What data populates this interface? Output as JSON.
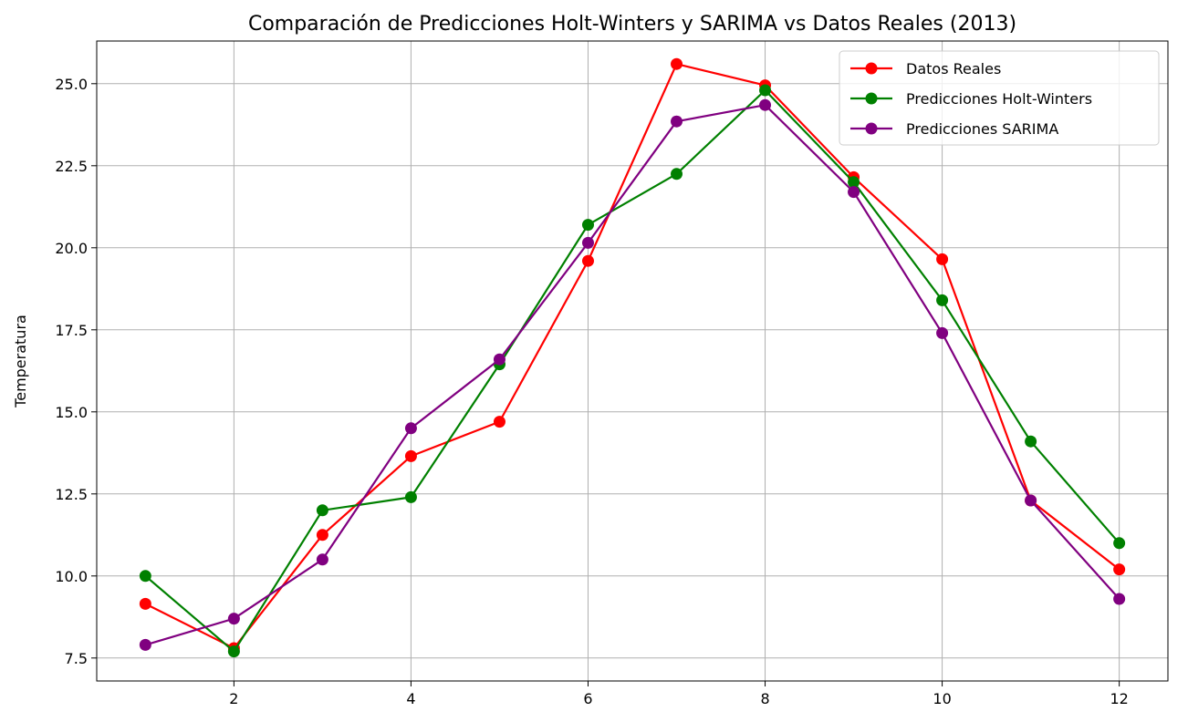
{
  "chart_data": {
    "type": "line",
    "title": "Comparación de Predicciones Holt-Winters y SARIMA vs Datos Reales (2013)",
    "xlabel": "",
    "ylabel": "Temperatura",
    "x": [
      1,
      2,
      3,
      4,
      5,
      6,
      7,
      8,
      9,
      10,
      11,
      12
    ],
    "xlim": [
      0.45,
      12.55
    ],
    "ylim": [
      6.8,
      26.3
    ],
    "xticks": [
      2,
      4,
      6,
      8,
      10,
      12
    ],
    "xtick_labels": [
      "2",
      "4",
      "6",
      "8",
      "10",
      "12"
    ],
    "yticks": [
      7.5,
      10.0,
      12.5,
      15.0,
      17.5,
      20.0,
      22.5,
      25.0
    ],
    "ytick_labels": [
      "7.5",
      "10.0",
      "12.5",
      "15.0",
      "17.5",
      "20.0",
      "22.5",
      "25.0"
    ],
    "grid": true,
    "legend_position": "top-right",
    "series": [
      {
        "name": "Datos Reales",
        "color": "#ff0000",
        "values": [
          9.15,
          7.8,
          11.25,
          13.65,
          14.7,
          19.6,
          25.6,
          24.95,
          22.15,
          19.65,
          12.3,
          10.2
        ]
      },
      {
        "name": "Predicciones Holt-Winters",
        "color": "#008000",
        "values": [
          10.0,
          7.7,
          12.0,
          12.4,
          16.45,
          20.7,
          22.25,
          24.8,
          22.0,
          18.4,
          14.1,
          11.0
        ]
      },
      {
        "name": "Predicciones SARIMA",
        "color": "#800080",
        "values": [
          7.9,
          8.7,
          10.5,
          14.5,
          16.6,
          20.15,
          23.85,
          24.35,
          21.7,
          17.4,
          12.3,
          9.3
        ]
      }
    ]
  }
}
